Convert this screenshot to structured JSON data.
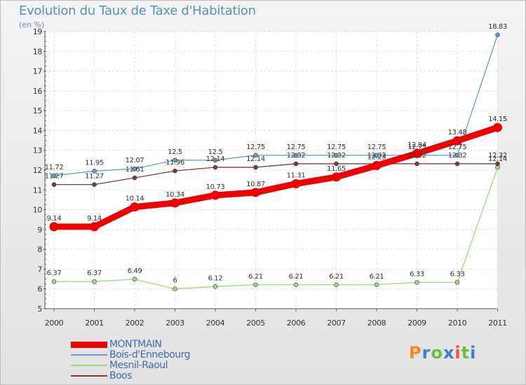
{
  "title": "Evolution du Taux de Taxe d'Habitation",
  "unit": "(en %)",
  "logo": {
    "text": "Proxiti",
    "colors": [
      "#f28c28",
      "#3a7fd5",
      "#6cbf3a",
      "#3a7fd5",
      "#e85a2a",
      "#6cbf3a",
      "#3a7fd5"
    ]
  },
  "chart_data": {
    "type": "line",
    "title": "Evolution du Taux de Taxe d'Habitation",
    "ylabel": "(en %)",
    "xlabel": "",
    "x": [
      "2000",
      "2001",
      "2002",
      "2003",
      "2004",
      "2005",
      "2006",
      "2007",
      "2008",
      "2009",
      "2010",
      "2011"
    ],
    "ylim": [
      5,
      19
    ],
    "yticks": [
      "5",
      "6",
      "7",
      "8",
      "9",
      "10",
      "11",
      "12",
      "13",
      "14",
      "15",
      "16",
      "17",
      "18",
      "19"
    ],
    "grid": true,
    "legend": "bottom-left",
    "series": [
      {
        "name": "MONTMAIN",
        "color": "#ee0000",
        "thick": true,
        "values": [
          9.14,
          9.14,
          10.14,
          10.34,
          10.73,
          10.87,
          11.31,
          11.65,
          12.23,
          12.84,
          13.48,
          14.15
        ],
        "labels": [
          "9.14",
          "9.14",
          "10.14",
          "10.34",
          "10.73",
          "10.87",
          "11.31",
          "11.65",
          "12.23",
          "12.84",
          "13.48",
          "14.15"
        ]
      },
      {
        "name": "Bois-d'Ennebourg",
        "color": "#5d9bd0",
        "thick": false,
        "values": [
          11.72,
          11.95,
          12.07,
          12.5,
          12.5,
          12.75,
          12.75,
          12.75,
          12.75,
          12.75,
          12.75,
          18.83
        ],
        "labels": [
          "11.72",
          "11.95",
          "12.07",
          "12.5",
          "12.5",
          "12.75",
          "12.75",
          "12.75",
          "12.75",
          "12.75",
          "12.75",
          "18.83"
        ]
      },
      {
        "name": "Mesnil-Raoul",
        "color": "#9ed87a",
        "thick": false,
        "values": [
          6.37,
          6.37,
          6.49,
          6,
          6.12,
          6.21,
          6.21,
          6.21,
          6.21,
          6.33,
          6.33,
          12.14
        ],
        "labels": [
          "6.37",
          "6.37",
          "6.49",
          "6",
          "6.12",
          "6.21",
          "6.21",
          "6.21",
          "6.21",
          "6.33",
          "6.33",
          "12.14"
        ]
      },
      {
        "name": "Boos",
        "color": "#7d3a3a",
        "thick": false,
        "values": [
          11.27,
          11.27,
          11.61,
          11.96,
          12.14,
          12.14,
          12.32,
          12.32,
          12.32,
          12.32,
          12.32,
          12.32
        ],
        "labels": [
          "11.27",
          "11.27",
          "11.61",
          "11.96",
          "12.14",
          "12.14",
          "12.32",
          "12.32",
          "12.32",
          "12.32",
          "12.32",
          "12.32"
        ]
      }
    ]
  }
}
